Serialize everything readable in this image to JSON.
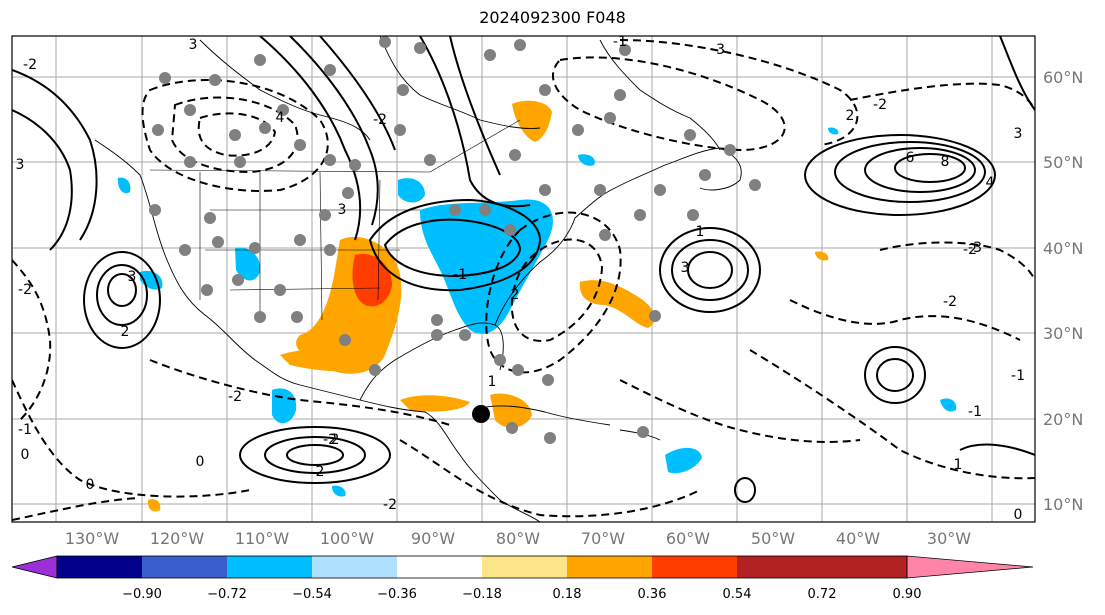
{
  "title": "2024092300 F048",
  "map": {
    "lon_labels": [
      "130°W",
      "120°W",
      "110°W",
      "100°W",
      "90°W",
      "80°W",
      "70°W",
      "60°W",
      "50°W",
      "40°W",
      "30°W"
    ],
    "lat_labels": [
      "60°N",
      "50°N",
      "40°N",
      "30°N",
      "20°N",
      "10°N"
    ],
    "contour_labels": [
      "3",
      "3",
      "4",
      "3",
      "-2",
      "2",
      "-2",
      "2",
      "3",
      "1",
      "-3",
      "-2",
      "6",
      "8",
      "4",
      "3",
      "-2",
      "2",
      "-2",
      "-1",
      "-1",
      "1",
      "0",
      "2",
      "-2",
      "2",
      "-1",
      "0",
      "0",
      "-1",
      "0",
      "-2",
      "-3",
      "-1",
      "-2",
      "3",
      "1",
      "-2"
    ],
    "storm_marker": "tropical-low",
    "colors": {
      "coast": "#000000",
      "grid": "#aaaaaa",
      "dot": "#808080"
    }
  },
  "colorbar": {
    "ticks": [
      "−0.90",
      "−0.72",
      "−0.54",
      "−0.36",
      "−0.18",
      "0.18",
      "0.36",
      "0.54",
      "0.72",
      "0.90"
    ],
    "colors": [
      "#9b30d9",
      "#00008b",
      "#3a5fcd",
      "#00bfff",
      "#b0e2ff",
      "#ffffff",
      "#fde68a",
      "#ffa500",
      "#ff3d00",
      "#b22222",
      "#ff85a8"
    ]
  }
}
